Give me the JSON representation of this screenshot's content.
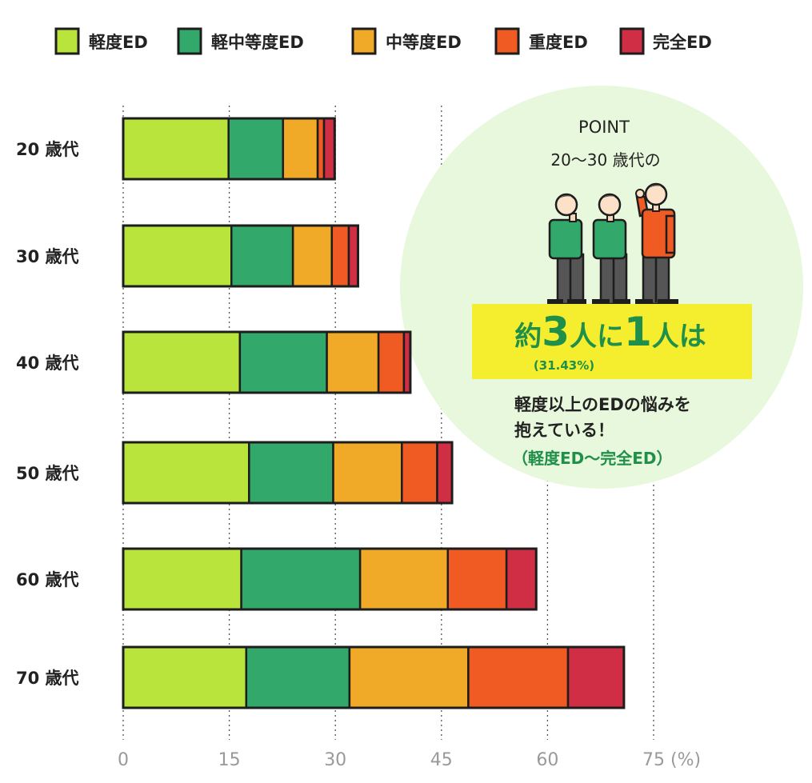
{
  "chart_data": {
    "type": "bar",
    "orientation": "horizontal",
    "stacked": true,
    "categories": [
      "20 歳代",
      "30 歳代",
      "40 歳代",
      "50 歳代",
      "60 歳代",
      "70 歳代"
    ],
    "series": [
      {
        "name": "軽度ED",
        "color": "#b8e43c",
        "values": [
          14.9,
          15.3,
          16.5,
          17.8,
          16.7,
          17.4
        ]
      },
      {
        "name": "軽中等度ED",
        "color": "#33a86b",
        "values": [
          7.7,
          8.7,
          12.3,
          11.9,
          16.8,
          14.6
        ]
      },
      {
        "name": "中等度ED",
        "color": "#f0aa28",
        "values": [
          4.9,
          5.5,
          7.3,
          9.7,
          12.4,
          16.8
        ]
      },
      {
        "name": "重度ED",
        "color": "#f05a23",
        "values": [
          0.9,
          2.4,
          3.6,
          5.0,
          8.3,
          14.1
        ]
      },
      {
        "name": "完全ED",
        "color": "#cf2e45",
        "values": [
          1.5,
          1.3,
          0.9,
          2.1,
          4.2,
          7.9
        ]
      }
    ],
    "xticks": [
      0,
      15,
      30,
      45,
      60,
      75
    ],
    "xunit": "(%)",
    "xlim": [
      0,
      75
    ],
    "grid": true,
    "legend_position": "top"
  },
  "callout": {
    "title": "POINT",
    "subtitle": "20〜30 歳代の",
    "headline": {
      "p1": "約",
      "p2": "3",
      "p3": "人に",
      "p4": "1",
      "p5": "人は"
    },
    "percent": "(31.43%)",
    "body_line1": "軽度以上のEDの悩みを",
    "body_line2": "抱えている！",
    "note": "（軽度ED〜完全ED）",
    "icons": [
      "person-icon",
      "person-icon",
      "person-raising-hand-icon"
    ]
  }
}
